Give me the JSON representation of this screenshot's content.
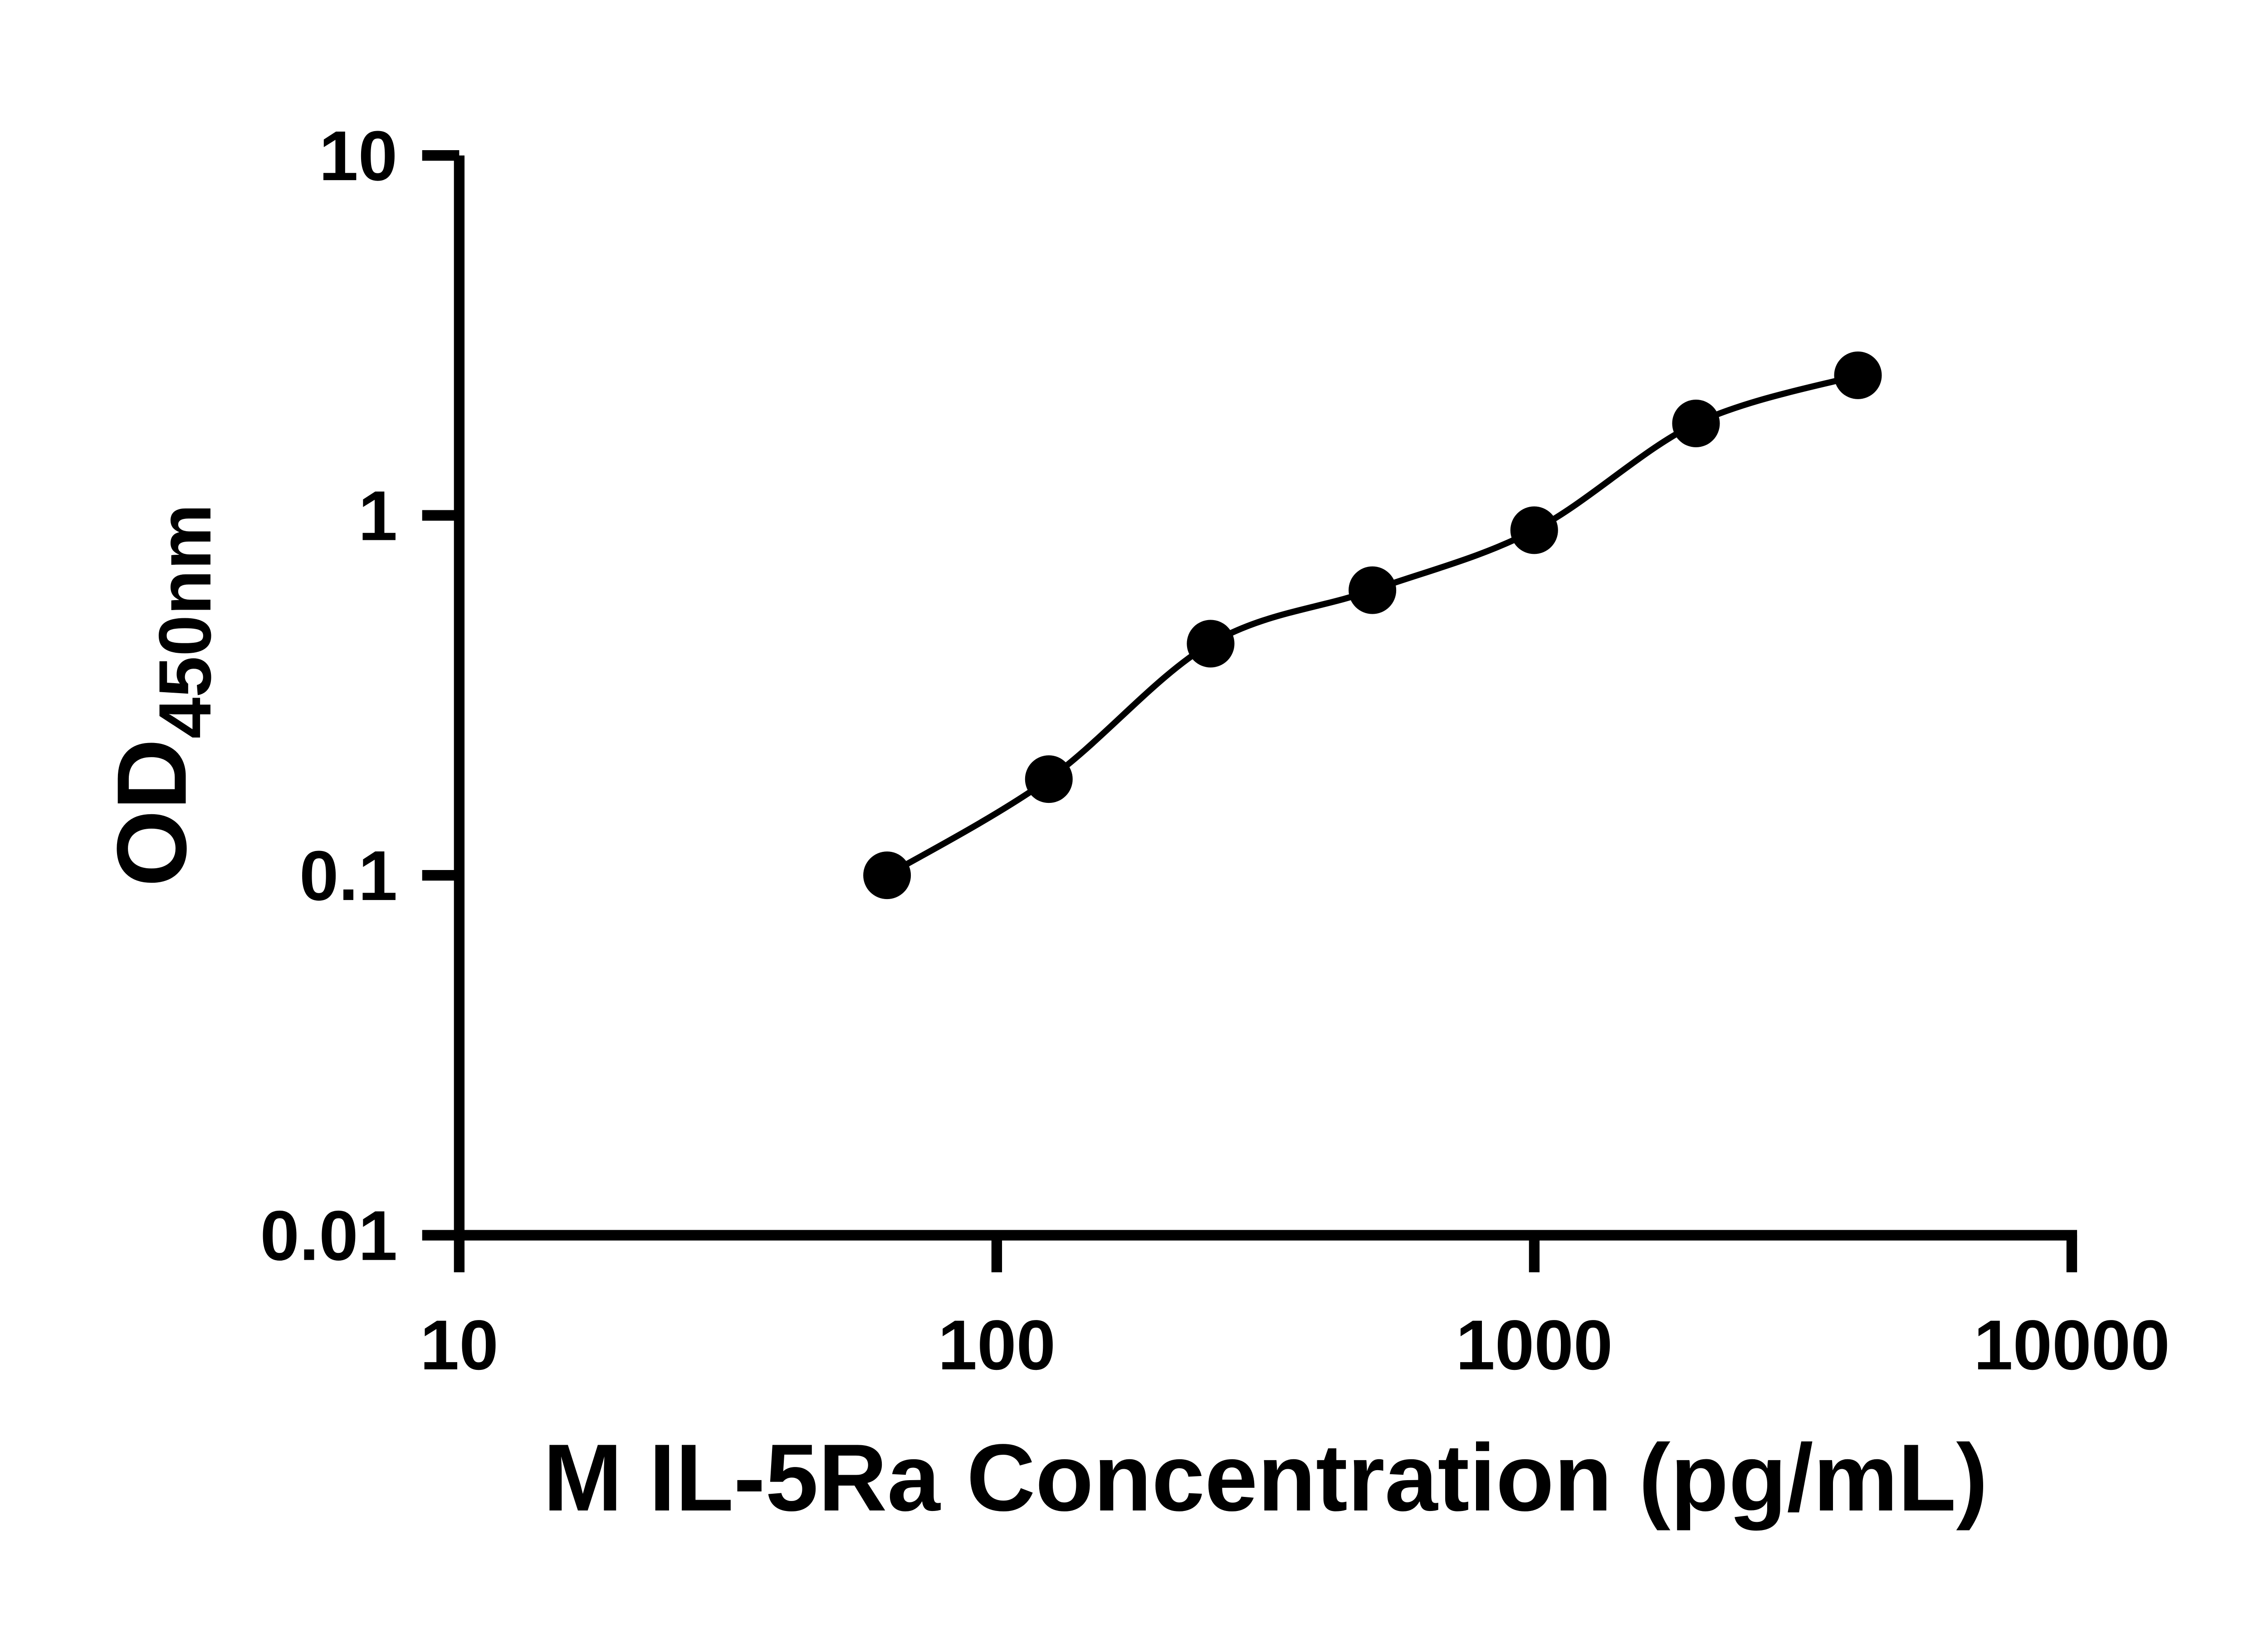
{
  "figure": {
    "background_color": "#ffffff"
  },
  "chart_data": {
    "type": "scatter",
    "title": "",
    "xlabel": "M IL-5Ra Concentration (pg/mL)",
    "ylabel_main": "OD",
    "ylabel_sub": "450nm",
    "x_scale": "log10",
    "y_scale": "log10",
    "xlim": [
      10,
      10000
    ],
    "ylim": [
      0.01,
      10
    ],
    "x_tick_values": [
      10,
      100,
      1000,
      10000
    ],
    "x_tick_labels": [
      "10",
      "100",
      "1000",
      "10000"
    ],
    "y_tick_values": [
      0.01,
      0.1,
      1,
      10
    ],
    "y_tick_labels": [
      "0.01",
      "0.1",
      "1",
      "10"
    ],
    "grid": false,
    "legend": "none",
    "has_fit_curve": true,
    "axis_color": "#000000",
    "marker_color": "#000000",
    "curve_color": "#000000",
    "points": [
      {
        "x": 62.5,
        "y": 0.1
      },
      {
        "x": 125,
        "y": 0.185
      },
      {
        "x": 250,
        "y": 0.44
      },
      {
        "x": 500,
        "y": 0.62
      },
      {
        "x": 1000,
        "y": 0.91
      },
      {
        "x": 2000,
        "y": 1.8
      },
      {
        "x": 4000,
        "y": 2.45
      }
    ]
  }
}
